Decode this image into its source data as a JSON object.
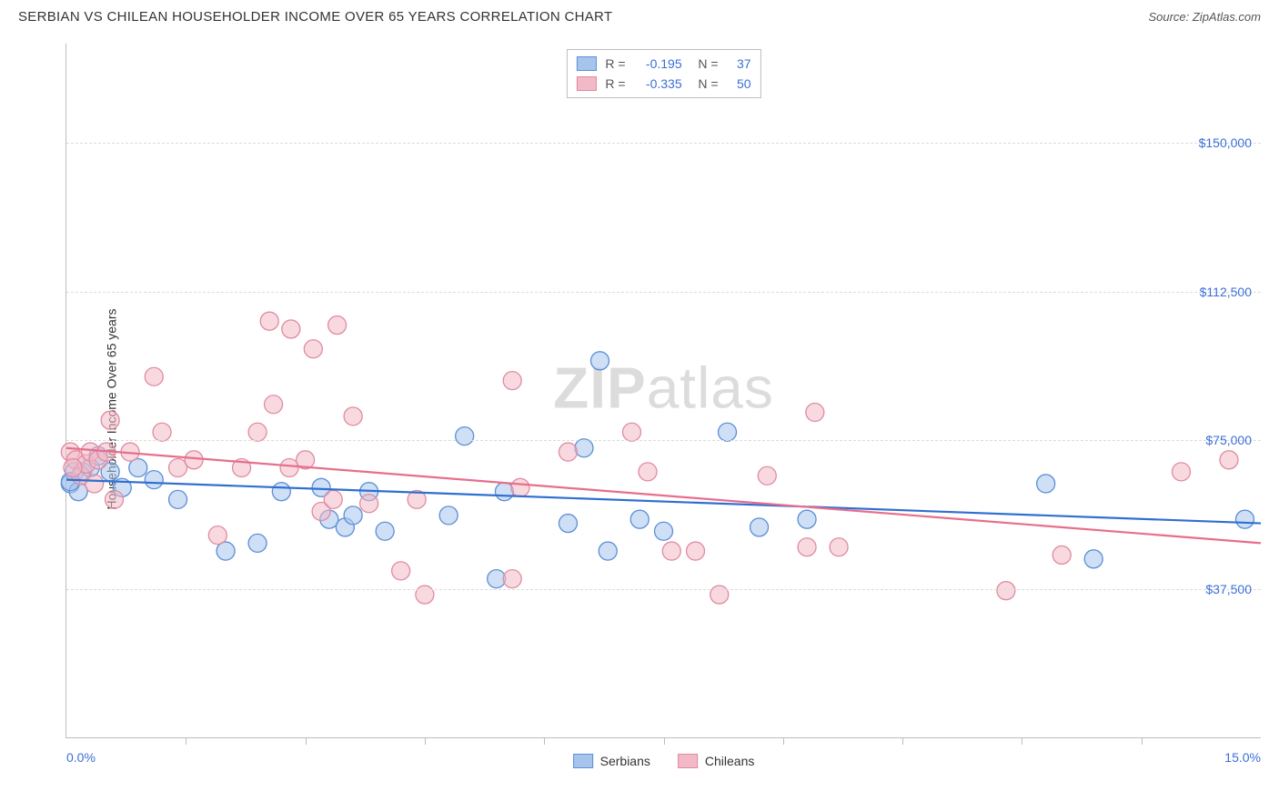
{
  "header": {
    "title": "SERBIAN VS CHILEAN HOUSEHOLDER INCOME OVER 65 YEARS CORRELATION CHART",
    "source_prefix": "Source: ",
    "source": "ZipAtlas.com"
  },
  "chart": {
    "type": "scatter",
    "ylabel": "Householder Income Over 65 years",
    "background_color": "#ffffff",
    "grid_color": "#dcdcdc",
    "axis_color": "#bdbdbd",
    "tick_label_color": "#3a6fd8",
    "watermark": {
      "bold": "ZIP",
      "rest": "atlas"
    },
    "xlim": [
      0,
      15
    ],
    "ylim": [
      0,
      175000
    ],
    "yticks": [
      {
        "v": 37500,
        "label": "$37,500"
      },
      {
        "v": 75000,
        "label": "$75,000"
      },
      {
        "v": 112500,
        "label": "$112,500"
      },
      {
        "v": 150000,
        "label": "$150,000"
      }
    ],
    "xticks_major": [
      0,
      15
    ],
    "xticks_minor": [
      1.5,
      3.0,
      4.5,
      6.0,
      7.5,
      9.0,
      10.5,
      12.0,
      13.5
    ],
    "xtick_labels": [
      {
        "v": 0,
        "label": "0.0%",
        "align": "left"
      },
      {
        "v": 15,
        "label": "15.0%",
        "align": "right"
      }
    ],
    "marker_radius": 10,
    "marker_opacity": 0.55,
    "line_width": 2.2,
    "series": [
      {
        "name": "Serbians",
        "fill": "#a7c5ec",
        "stroke": "#5b8fd6",
        "line_color": "#2f6fd0",
        "R": "-0.195",
        "N": "37",
        "trend": {
          "y_at_x0": 65000,
          "y_at_xmax": 54000
        },
        "points": [
          [
            0.05,
            64000
          ],
          [
            0.1,
            67000
          ],
          [
            0.15,
            62000
          ],
          [
            0.2,
            67000
          ],
          [
            0.3,
            68000
          ],
          [
            0.4,
            71000
          ],
          [
            0.55,
            67000
          ],
          [
            0.7,
            63000
          ],
          [
            0.9,
            68000
          ],
          [
            1.1,
            65000
          ],
          [
            1.4,
            60000
          ],
          [
            2.0,
            47000
          ],
          [
            2.4,
            49000
          ],
          [
            2.7,
            62000
          ],
          [
            3.2,
            63000
          ],
          [
            3.3,
            55000
          ],
          [
            3.5,
            53000
          ],
          [
            3.6,
            56000
          ],
          [
            3.8,
            62000
          ],
          [
            4.0,
            52000
          ],
          [
            5.0,
            76000
          ],
          [
            4.8,
            56000
          ],
          [
            5.4,
            40000
          ],
          [
            5.5,
            62000
          ],
          [
            6.3,
            54000
          ],
          [
            6.5,
            73000
          ],
          [
            6.7,
            95000
          ],
          [
            6.8,
            47000
          ],
          [
            7.2,
            55000
          ],
          [
            7.5,
            52000
          ],
          [
            8.3,
            77000
          ],
          [
            8.7,
            53000
          ],
          [
            9.3,
            55000
          ],
          [
            12.3,
            64000
          ],
          [
            12.9,
            45000
          ],
          [
            14.8,
            55000
          ],
          [
            0.05,
            64500
          ]
        ]
      },
      {
        "name": "Chileans",
        "fill": "#f3b9c6",
        "stroke": "#e08ba0",
        "line_color": "#e76f8b",
        "R": "-0.335",
        "N": "50",
        "trend": {
          "y_at_x0": 73000,
          "y_at_xmax": 49000
        },
        "points": [
          [
            0.05,
            72000
          ],
          [
            0.12,
            70000
          ],
          [
            0.18,
            66000
          ],
          [
            0.25,
            69000
          ],
          [
            0.3,
            72000
          ],
          [
            0.35,
            64000
          ],
          [
            0.4,
            70000
          ],
          [
            0.5,
            72000
          ],
          [
            0.55,
            80000
          ],
          [
            0.6,
            60000
          ],
          [
            0.8,
            72000
          ],
          [
            1.1,
            91000
          ],
          [
            1.2,
            77000
          ],
          [
            1.4,
            68000
          ],
          [
            1.6,
            70000
          ],
          [
            1.9,
            51000
          ],
          [
            2.2,
            68000
          ],
          [
            2.4,
            77000
          ],
          [
            2.55,
            105000
          ],
          [
            2.6,
            84000
          ],
          [
            2.8,
            68000
          ],
          [
            2.82,
            103000
          ],
          [
            3.0,
            70000
          ],
          [
            3.1,
            98000
          ],
          [
            3.2,
            57000
          ],
          [
            3.35,
            60000
          ],
          [
            3.4,
            104000
          ],
          [
            3.6,
            81000
          ],
          [
            3.8,
            59000
          ],
          [
            4.2,
            42000
          ],
          [
            4.4,
            60000
          ],
          [
            4.5,
            36000
          ],
          [
            5.6,
            40000
          ],
          [
            5.6,
            90000
          ],
          [
            5.7,
            63000
          ],
          [
            6.3,
            72000
          ],
          [
            7.1,
            77000
          ],
          [
            7.3,
            67000
          ],
          [
            7.6,
            47000
          ],
          [
            7.9,
            47000
          ],
          [
            8.2,
            36000
          ],
          [
            8.8,
            66000
          ],
          [
            9.3,
            48000
          ],
          [
            9.4,
            82000
          ],
          [
            9.7,
            48000
          ],
          [
            11.8,
            37000
          ],
          [
            12.5,
            46000
          ],
          [
            14.0,
            67000
          ],
          [
            14.6,
            70000
          ],
          [
            0.08,
            68000
          ]
        ]
      }
    ]
  },
  "legend_bottom": [
    {
      "label": "Serbians",
      "fill": "#a7c5ec",
      "stroke": "#5b8fd6"
    },
    {
      "label": "Chileans",
      "fill": "#f3b9c6",
      "stroke": "#e08ba0"
    }
  ]
}
